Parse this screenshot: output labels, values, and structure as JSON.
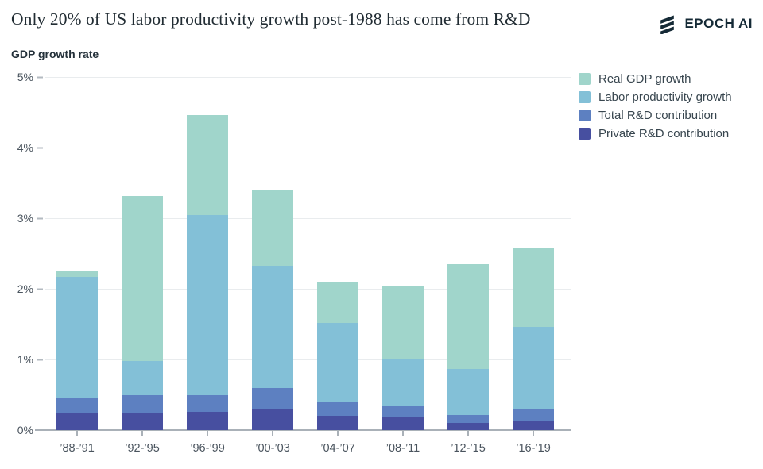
{
  "header": {
    "title": "Only 20% of US labor productivity growth post-1988 has come from R&D",
    "brand": "EPOCH AI"
  },
  "chart_data": {
    "type": "bar",
    "variant": "overlapping-stacked-bars",
    "title": "GDP growth rate",
    "xlabel": "",
    "ylabel": "GDP growth rate",
    "ylim": [
      0,
      5
    ],
    "yticks": [
      "0%",
      "1%",
      "2%",
      "3%",
      "4%",
      "5%"
    ],
    "grid": true,
    "legend_position": "top-right",
    "categories": [
      "’88-’91",
      "’92-’95",
      "’96-’99",
      "’00-’03",
      "’04-’07",
      "’08-’11",
      "’12-’15",
      "’16-’19"
    ],
    "series": [
      {
        "name": "Real GDP growth",
        "color": "#a0d5cb",
        "values": [
          2.25,
          3.32,
          4.46,
          3.39,
          2.1,
          2.04,
          2.35,
          2.57
        ]
      },
      {
        "name": "Labor productivity growth",
        "color": "#83c0d7",
        "values": [
          2.17,
          0.98,
          3.05,
          2.33,
          1.52,
          1.0,
          0.86,
          1.46
        ]
      },
      {
        "name": "Total R&D contribution",
        "color": "#5d80c1",
        "values": [
          0.46,
          0.49,
          0.5,
          0.6,
          0.39,
          0.35,
          0.21,
          0.29
        ]
      },
      {
        "name": "Private R&D contribution",
        "color": "#474fa0",
        "values": [
          0.24,
          0.25,
          0.26,
          0.3,
          0.2,
          0.18,
          0.1,
          0.14
        ]
      }
    ],
    "note": "Series values are cumulative heights from zero (percent GDP growth rate); later series are drawn in front of earlier ones."
  },
  "colors": {
    "brand_dark": "#152a36",
    "gridline": "#e9ecee",
    "axis": "#aab1b8",
    "tick_label": "#4a545e",
    "legend_text": "#38464f",
    "title_text": "#212c33"
  }
}
